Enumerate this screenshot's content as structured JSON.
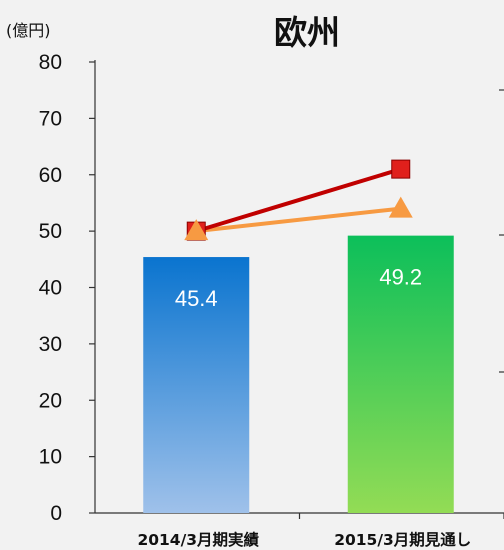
{
  "chart_data": {
    "type": "bar",
    "title": "欧州",
    "ylabel": "(億円)",
    "ylim": [
      0,
      80
    ],
    "yticks": [
      0,
      10,
      20,
      30,
      40,
      50,
      60,
      70,
      80
    ],
    "categories": [
      "2014/3月期実績",
      "2015/3月期見通し"
    ],
    "series": [
      {
        "values": [
          45.4,
          49.2
        ],
        "colors": [
          "#0a74cf",
          "#0cbf5a"
        ],
        "colors_bottom": [
          "#9fc1ea",
          "#93dc55"
        ]
      }
    ],
    "line_series": [
      {
        "values": [
          50,
          61
        ],
        "color": "#c00000",
        "marker": "square",
        "marker_color": "#e0201c"
      },
      {
        "values": [
          50,
          54
        ],
        "color": "#f79a42",
        "marker": "triangle",
        "marker_color": "#f79a42"
      }
    ],
    "data_labels": [
      "45.4",
      "49.2"
    ],
    "grid": false,
    "legend": "none"
  }
}
